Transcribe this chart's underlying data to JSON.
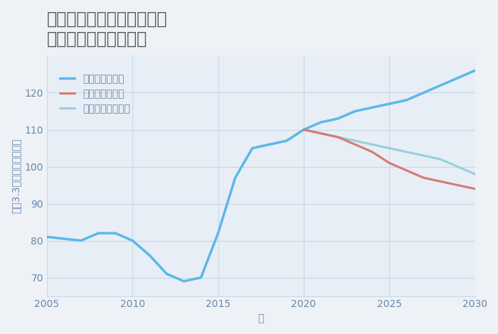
{
  "title": "大阪府大阪市北区神山町の\n中古戸建ての価格推移",
  "xlabel": "年",
  "ylabel": "坪（3.3㎡）単価（万円）",
  "background_color": "#eef2f7",
  "plot_background": "#e8eef5",
  "xlim": [
    2005,
    2030
  ],
  "ylim": [
    65,
    130
  ],
  "yticks": [
    70,
    80,
    90,
    100,
    110,
    120
  ],
  "xticks": [
    2005,
    2010,
    2015,
    2020,
    2025,
    2030
  ],
  "good_scenario": {
    "label": "グッドシナリオ",
    "color": "#5bb8e8",
    "years": [
      2005,
      2006,
      2007,
      2008,
      2009,
      2010,
      2011,
      2012,
      2013,
      2014,
      2015,
      2016,
      2017,
      2018,
      2019,
      2020,
      2021,
      2022,
      2023,
      2024,
      2025,
      2026,
      2027,
      2028,
      2029,
      2030
    ],
    "values": [
      81,
      80.5,
      80,
      82,
      82,
      80,
      76,
      71,
      69,
      70,
      82,
      97,
      105,
      106,
      107,
      110,
      112,
      113,
      115,
      116,
      117,
      118,
      120,
      122,
      124,
      126
    ],
    "linewidth": 2.5
  },
  "bad_scenario": {
    "label": "バッドシナリオ",
    "color": "#d47b72",
    "years": [
      2020,
      2021,
      2022,
      2023,
      2024,
      2025,
      2026,
      2027,
      2028,
      2029,
      2030
    ],
    "values": [
      110,
      109,
      108,
      106,
      104,
      101,
      99,
      97,
      96,
      95,
      94
    ],
    "linewidth": 2.2
  },
  "normal_scenario": {
    "label": "ノーマルシナリオ",
    "color": "#96cfe0",
    "years": [
      2020,
      2021,
      2022,
      2023,
      2024,
      2025,
      2026,
      2027,
      2028,
      2029,
      2030
    ],
    "values": [
      110,
      109,
      108,
      107,
      106,
      105,
      104,
      103,
      102,
      100,
      98
    ],
    "linewidth": 2.2
  },
  "title_color": "#555555",
  "tick_color": "#6688aa",
  "grid_color": "#c8d8e8",
  "title_fontsize": 17,
  "label_fontsize": 10,
  "tick_fontsize": 10,
  "legend_fontsize": 10
}
